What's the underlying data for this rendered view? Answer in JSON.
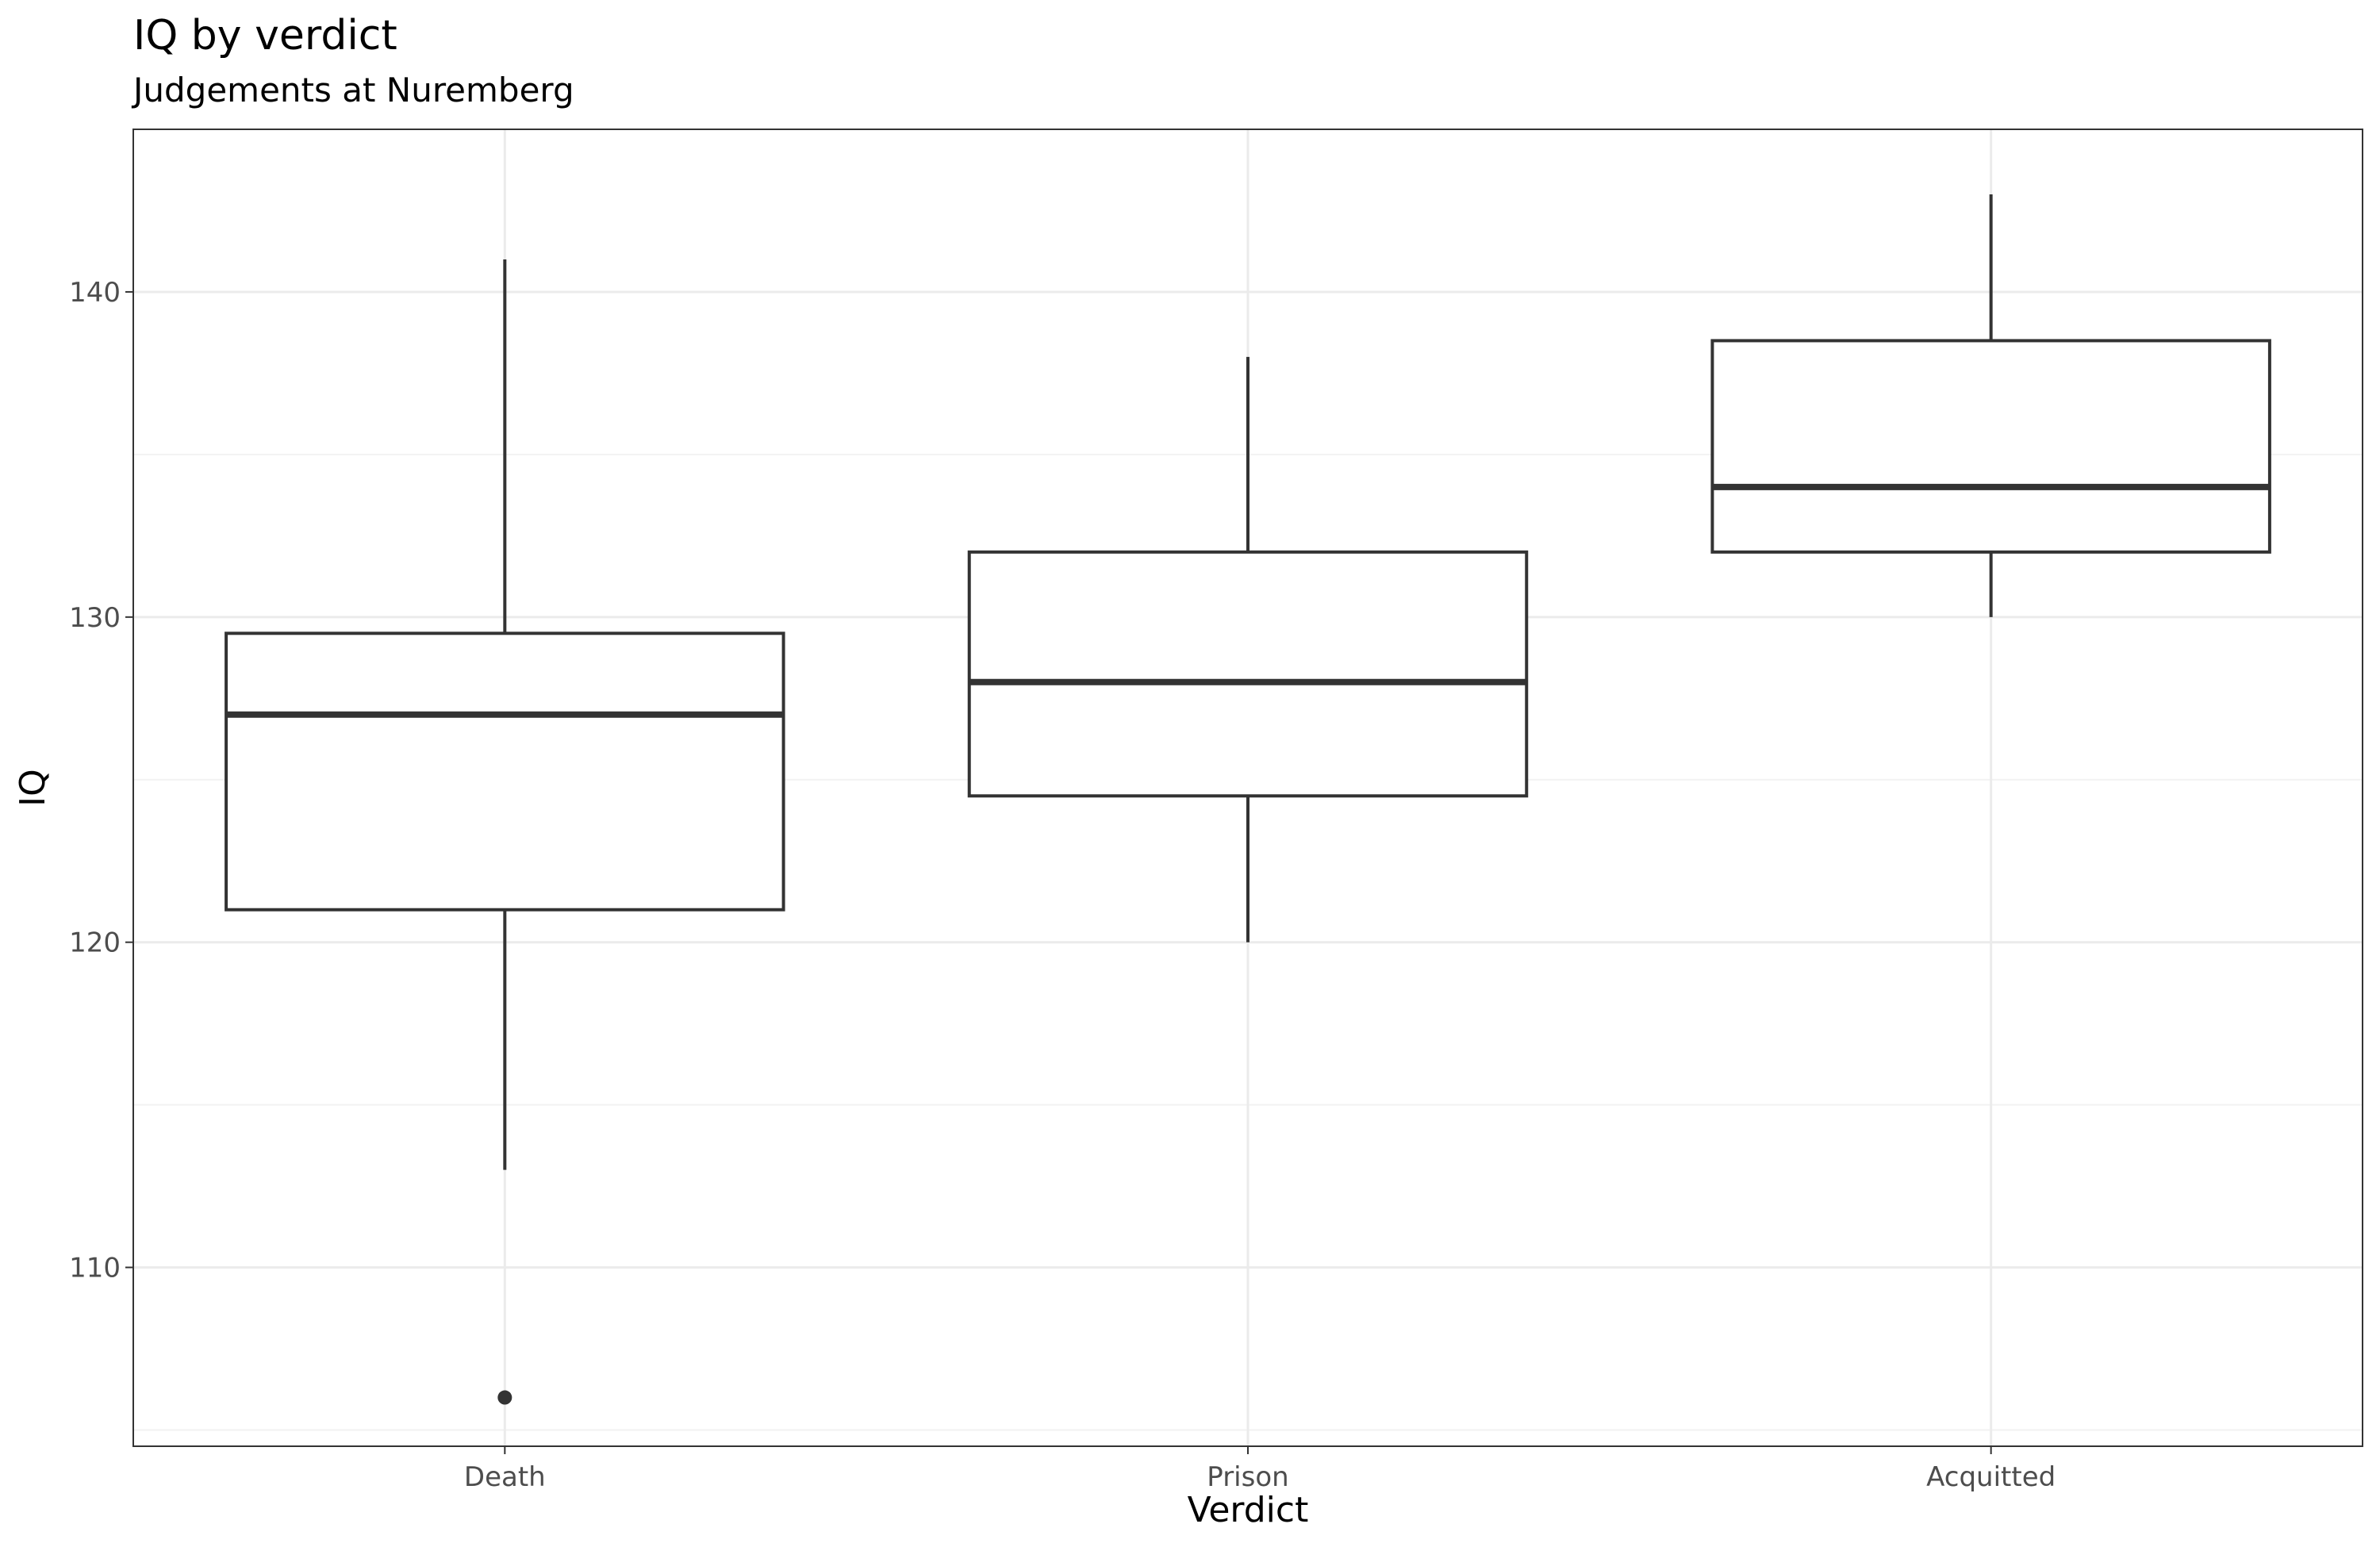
{
  "chart_data": {
    "type": "boxplot",
    "title": "IQ by verdict",
    "subtitle": "Judgements at Nuremberg",
    "xlabel": "Verdict",
    "ylabel": "IQ",
    "categories": [
      "Death",
      "Prison",
      "Acquitted"
    ],
    "ylim": [
      104.5,
      145.0
    ],
    "yticks": [
      110,
      120,
      130,
      140
    ],
    "grid": true,
    "legend": "none",
    "boxes": [
      {
        "category": "Death",
        "whisker_low": 113,
        "q1": 121,
        "median": 127,
        "q3": 129.5,
        "whisker_high": 141,
        "outliers": [
          106
        ]
      },
      {
        "category": "Prison",
        "whisker_low": 120,
        "q1": 124.5,
        "median": 128,
        "q3": 132,
        "whisker_high": 138,
        "outliers": []
      },
      {
        "category": "Acquitted",
        "whisker_low": 130,
        "q1": 132,
        "median": 134,
        "q3": 138.5,
        "whisker_high": 143,
        "outliers": []
      }
    ]
  },
  "colors": {
    "box_stroke": "#333333",
    "grid_major": "#ebebeb",
    "grid_minor": "#f2f2f2",
    "panel_border": "#333333",
    "tick_text": "#4d4d4d"
  }
}
